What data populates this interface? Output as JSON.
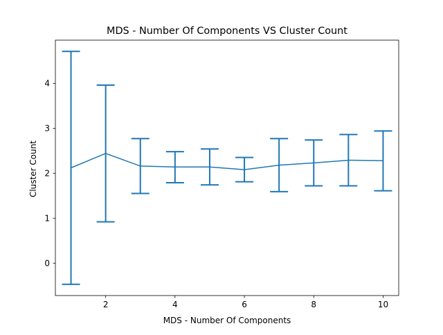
{
  "chart_data": {
    "type": "line",
    "title": "MDS - Number Of Components VS Cluster Count",
    "xlabel": "MDS - Number Of Components",
    "ylabel": "Cluster Count",
    "x": [
      1,
      2,
      3,
      4,
      5,
      6,
      7,
      8,
      9,
      10
    ],
    "series": [
      {
        "values": [
          2.12,
          2.44,
          2.16,
          2.14,
          2.14,
          2.08,
          2.18,
          2.23,
          2.29,
          2.28
        ],
        "error_lower": [
          -0.47,
          0.92,
          1.55,
          1.79,
          1.74,
          1.81,
          1.59,
          1.72,
          1.72,
          1.61
        ],
        "error_upper": [
          4.71,
          3.96,
          2.77,
          2.48,
          2.54,
          2.35,
          2.77,
          2.74,
          2.86,
          2.94
        ],
        "color": "#1f77b4"
      }
    ],
    "xlim": [
      0.55,
      10.45
    ],
    "ylim": [
      -0.72,
      4.96
    ],
    "xticks": [
      2,
      4,
      6,
      8,
      10
    ],
    "yticks": [
      0,
      1,
      2,
      3,
      4
    ],
    "grid": false
  }
}
